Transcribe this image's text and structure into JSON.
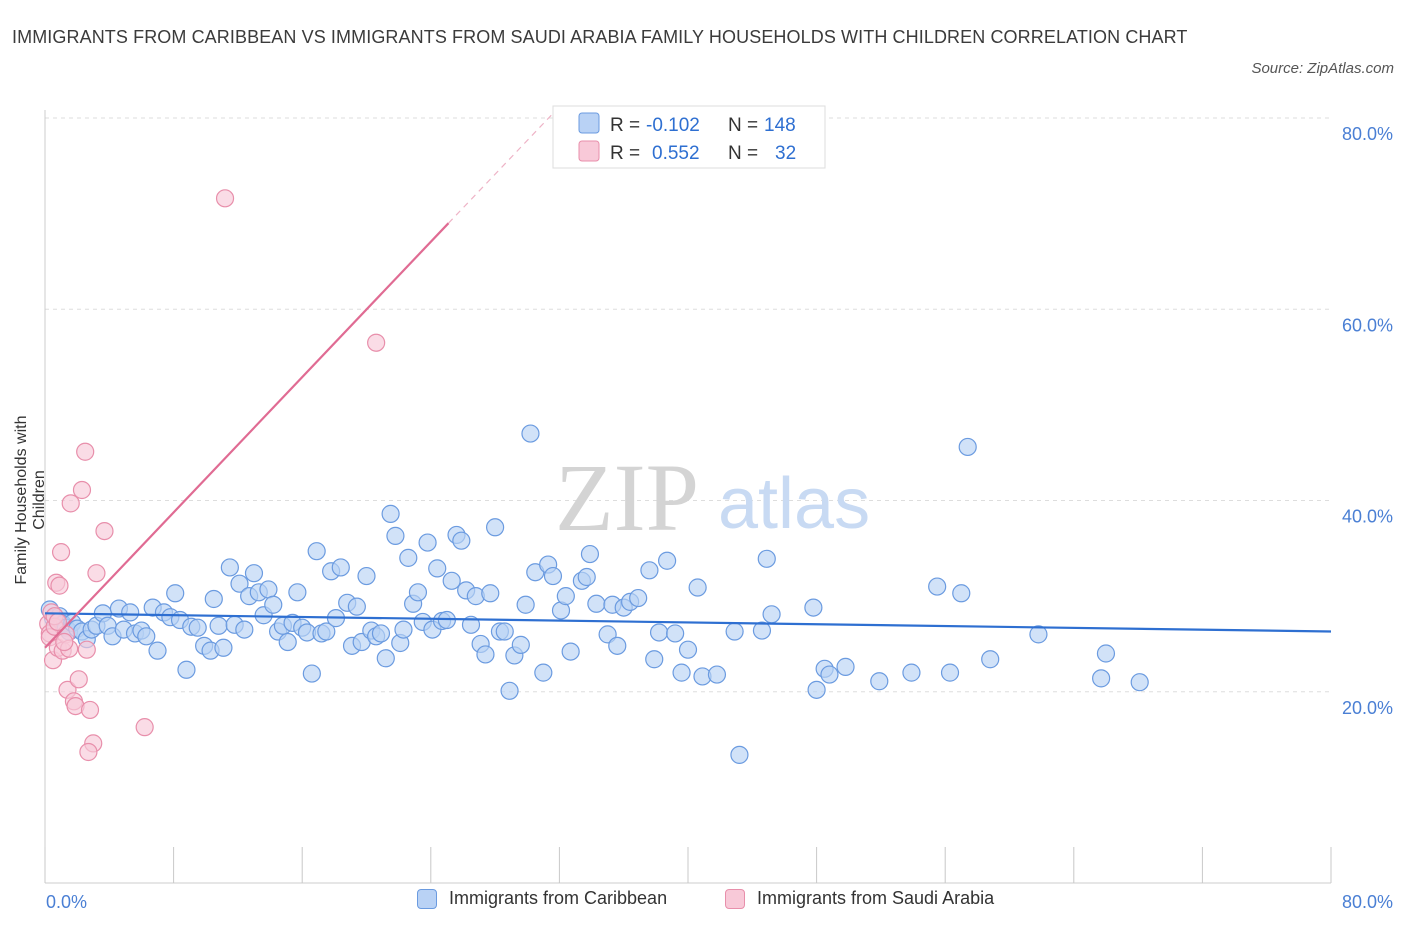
{
  "title": "IMMIGRANTS FROM CARIBBEAN VS IMMIGRANTS FROM SAUDI ARABIA FAMILY HOUSEHOLDS WITH CHILDREN CORRELATION CHART",
  "source": "Source: ZipAtlas.com",
  "watermark": {
    "zip": "ZIP",
    "atlas": "atlas"
  },
  "colors": {
    "blue_fill": "#b9d2f5",
    "blue_stroke": "#6b9be0",
    "blue_line": "#2e6fd1",
    "pink_fill": "#f8c9d8",
    "pink_stroke": "#e88fab",
    "pink_line": "#e06b93",
    "axis_text": "#4a7fd4",
    "grid": "#dddddd"
  },
  "legend": {
    "rows": [
      {
        "r_label": "R =",
        "r_value": "-0.102",
        "n_label": "N =",
        "n_value": "148"
      },
      {
        "r_label": "R =",
        "r_value": "0.552",
        "n_label": "N =",
        "n_value": "32"
      }
    ]
  },
  "bottom_legend": [
    "Immigrants from Caribbean",
    "Immigrants from Saudi Arabia"
  ],
  "chart_data": {
    "type": "scatter",
    "title": "IMMIGRANTS FROM CARIBBEAN VS IMMIGRANTS FROM SAUDI ARABIA FAMILY HOUSEHOLDS WITH CHILDREN CORRELATION CHART",
    "xlabel": "",
    "ylabel": "Family Households with Children",
    "xlim": [
      0,
      80
    ],
    "ylim": [
      0,
      80
    ],
    "x_tick_labels": [
      "0.0%",
      "80.0%"
    ],
    "y_ticks": [
      20,
      40,
      60,
      80
    ],
    "y_tick_labels": [
      "20.0%",
      "40.0%",
      "60.0%",
      "80.0%"
    ],
    "grid": true,
    "legend_position": "top-center",
    "series": [
      {
        "name": "Immigrants from Caribbean",
        "color": "#b9d2f5",
        "trend": {
          "x": [
            0,
            80
          ],
          "y": [
            28.2,
            26.3
          ]
        },
        "points": [
          [
            0.3,
            28.6
          ],
          [
            0.5,
            27.7
          ],
          [
            0.7,
            26.8
          ],
          [
            0.9,
            27.9
          ],
          [
            1.1,
            27.1
          ],
          [
            1.3,
            26.7
          ],
          [
            1.5,
            26.3
          ],
          [
            1.7,
            27.2
          ],
          [
            2.0,
            26.6
          ],
          [
            2.3,
            26.3
          ],
          [
            2.6,
            25.5
          ],
          [
            2.9,
            26.5
          ],
          [
            3.2,
            26.9
          ],
          [
            3.6,
            28.2
          ],
          [
            3.9,
            26.9
          ],
          [
            4.2,
            25.8
          ],
          [
            4.6,
            28.7
          ],
          [
            4.9,
            26.5
          ],
          [
            5.3,
            28.3
          ],
          [
            5.6,
            26.1
          ],
          [
            6.0,
            26.4
          ],
          [
            6.3,
            25.8
          ],
          [
            6.7,
            28.8
          ],
          [
            7.0,
            24.3
          ],
          [
            7.4,
            28.3
          ],
          [
            7.8,
            27.8
          ],
          [
            8.1,
            30.3
          ],
          [
            8.4,
            27.5
          ],
          [
            8.8,
            22.3
          ],
          [
            9.1,
            26.8
          ],
          [
            9.5,
            26.7
          ],
          [
            9.9,
            24.8
          ],
          [
            10.3,
            24.3
          ],
          [
            10.5,
            29.7
          ],
          [
            10.8,
            26.9
          ],
          [
            11.1,
            24.6
          ],
          [
            11.5,
            33.0
          ],
          [
            11.8,
            27.0
          ],
          [
            12.1,
            31.3
          ],
          [
            12.4,
            26.5
          ],
          [
            12.7,
            30.0
          ],
          [
            13.0,
            32.4
          ],
          [
            13.3,
            30.4
          ],
          [
            13.6,
            28.0
          ],
          [
            13.9,
            30.7
          ],
          [
            14.2,
            29.1
          ],
          [
            14.5,
            26.3
          ],
          [
            14.8,
            26.9
          ],
          [
            15.1,
            25.2
          ],
          [
            15.4,
            27.2
          ],
          [
            15.7,
            30.4
          ],
          [
            16.0,
            26.7
          ],
          [
            16.3,
            26.2
          ],
          [
            16.6,
            21.9
          ],
          [
            16.9,
            34.7
          ],
          [
            17.2,
            26.1
          ],
          [
            17.5,
            26.3
          ],
          [
            17.8,
            32.6
          ],
          [
            18.1,
            27.7
          ],
          [
            18.4,
            33.0
          ],
          [
            18.8,
            29.3
          ],
          [
            19.1,
            24.8
          ],
          [
            19.4,
            28.9
          ],
          [
            19.7,
            25.2
          ],
          [
            20.0,
            32.1
          ],
          [
            20.3,
            26.4
          ],
          [
            20.6,
            25.8
          ],
          [
            20.9,
            26.1
          ],
          [
            21.2,
            23.5
          ],
          [
            21.5,
            38.6
          ],
          [
            21.8,
            36.3
          ],
          [
            22.1,
            25.1
          ],
          [
            22.3,
            26.5
          ],
          [
            22.6,
            34.0
          ],
          [
            22.9,
            29.2
          ],
          [
            23.2,
            30.4
          ],
          [
            23.5,
            27.3
          ],
          [
            23.8,
            35.6
          ],
          [
            24.1,
            26.5
          ],
          [
            24.4,
            32.9
          ],
          [
            24.7,
            27.4
          ],
          [
            25.0,
            27.5
          ],
          [
            25.3,
            31.6
          ],
          [
            25.6,
            36.4
          ],
          [
            25.9,
            35.8
          ],
          [
            26.2,
            30.6
          ],
          [
            26.5,
            27.0
          ],
          [
            26.8,
            30.0
          ],
          [
            27.1,
            25.0
          ],
          [
            27.4,
            23.9
          ],
          [
            27.7,
            30.3
          ],
          [
            28.0,
            37.2
          ],
          [
            28.3,
            26.3
          ],
          [
            28.6,
            26.3
          ],
          [
            28.9,
            20.1
          ],
          [
            29.2,
            23.8
          ],
          [
            29.6,
            24.9
          ],
          [
            29.9,
            29.1
          ],
          [
            30.2,
            47.0
          ],
          [
            30.5,
            32.5
          ],
          [
            31.0,
            22.0
          ],
          [
            31.3,
            33.3
          ],
          [
            31.6,
            32.1
          ],
          [
            32.1,
            28.5
          ],
          [
            32.4,
            30.0
          ],
          [
            32.7,
            24.2
          ],
          [
            33.4,
            31.6
          ],
          [
            33.7,
            32.0
          ],
          [
            33.9,
            34.4
          ],
          [
            34.3,
            29.2
          ],
          [
            35.0,
            26.0
          ],
          [
            35.3,
            29.1
          ],
          [
            35.6,
            24.8
          ],
          [
            36.0,
            28.8
          ],
          [
            36.4,
            29.4
          ],
          [
            36.9,
            29.8
          ],
          [
            37.6,
            32.7
          ],
          [
            37.9,
            23.4
          ],
          [
            38.2,
            26.2
          ],
          [
            38.7,
            33.7
          ],
          [
            39.2,
            26.1
          ],
          [
            39.6,
            22.0
          ],
          [
            40.0,
            24.4
          ],
          [
            40.6,
            30.9
          ],
          [
            40.9,
            21.6
          ],
          [
            41.8,
            21.8
          ],
          [
            42.9,
            26.3
          ],
          [
            43.2,
            13.4
          ],
          [
            44.6,
            26.4
          ],
          [
            44.9,
            33.9
          ],
          [
            45.2,
            28.1
          ],
          [
            47.8,
            28.8
          ],
          [
            48.0,
            20.2
          ],
          [
            48.5,
            22.4
          ],
          [
            48.8,
            21.8
          ],
          [
            49.8,
            22.6
          ],
          [
            51.9,
            21.1
          ],
          [
            53.9,
            22.0
          ],
          [
            55.5,
            31.0
          ],
          [
            56.3,
            22.0
          ],
          [
            57.0,
            30.3
          ],
          [
            57.4,
            45.6
          ],
          [
            58.8,
            23.4
          ],
          [
            61.8,
            26.0
          ],
          [
            65.7,
            21.4
          ],
          [
            66.0,
            24.0
          ],
          [
            68.1,
            21.0
          ]
        ]
      },
      {
        "name": "Immigrants from Saudi Arabia",
        "color": "#f8c9d8",
        "trend": {
          "x": [
            0,
            25.1
          ],
          "y": [
            24.6,
            69.0
          ]
        },
        "trend_extension": {
          "x": [
            25.1,
            31.5
          ],
          "y": [
            69.0,
            80.3
          ]
        },
        "points": [
          [
            0.2,
            27.1
          ],
          [
            0.3,
            26.1
          ],
          [
            0.3,
            25.7
          ],
          [
            0.4,
            28.3
          ],
          [
            0.5,
            23.3
          ],
          [
            0.6,
            26.8
          ],
          [
            0.6,
            27.9
          ],
          [
            0.7,
            31.4
          ],
          [
            0.8,
            24.6
          ],
          [
            0.9,
            31.1
          ],
          [
            1.0,
            34.6
          ],
          [
            1.1,
            24.3
          ],
          [
            1.3,
            26.0
          ],
          [
            1.4,
            20.2
          ],
          [
            1.5,
            24.5
          ],
          [
            1.6,
            39.7
          ],
          [
            1.8,
            19.0
          ],
          [
            1.9,
            18.5
          ],
          [
            2.1,
            21.3
          ],
          [
            2.3,
            41.1
          ],
          [
            2.5,
            45.1
          ],
          [
            2.6,
            24.4
          ],
          [
            2.8,
            18.1
          ],
          [
            3.0,
            14.6
          ],
          [
            3.2,
            32.4
          ],
          [
            3.7,
            36.8
          ],
          [
            6.2,
            16.3
          ],
          [
            11.2,
            71.6
          ],
          [
            2.7,
            13.7
          ],
          [
            20.6,
            56.5
          ],
          [
            1.2,
            25.2
          ],
          [
            0.8,
            27.3
          ]
        ]
      }
    ]
  }
}
